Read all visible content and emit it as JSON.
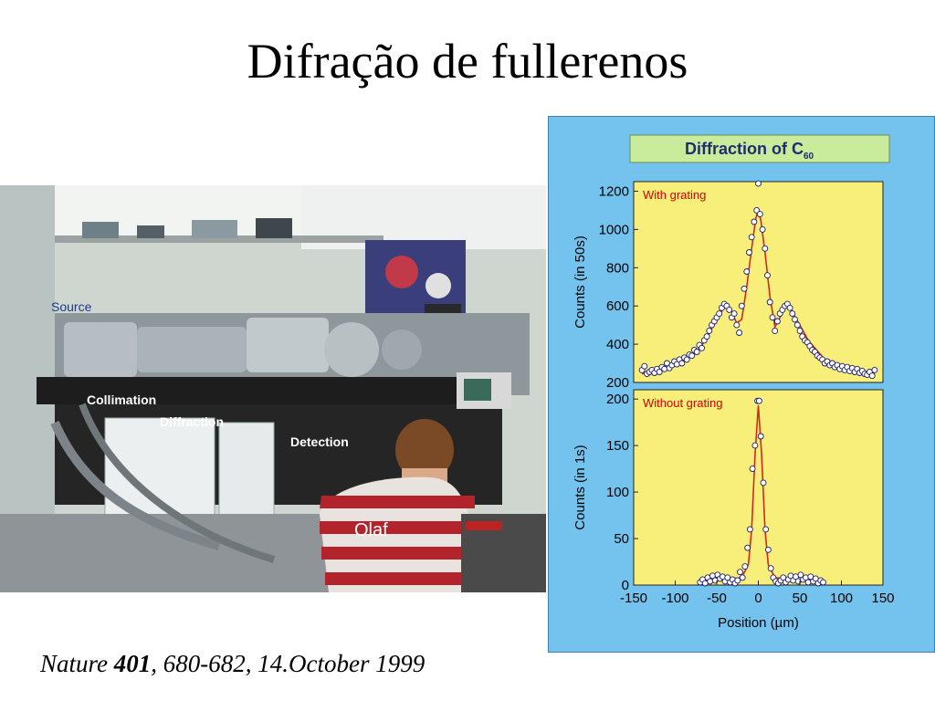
{
  "slide": {
    "title": "Difração de fullerenos",
    "citation": {
      "journal": "Nature ",
      "volume": "401",
      "rest": ", 680-682, 14.October 1999"
    }
  },
  "photo": {
    "labels": {
      "source": "Source",
      "collimation": "Collimation",
      "diffraction": "Diffraction",
      "detection": "Detection",
      "person": "Olaf"
    }
  },
  "colors": {
    "panel_bg": "#74c3ee",
    "plot_bg": "#f7ef7a",
    "header_bg": "#c8eb9c",
    "header_text": "#1f2d6e",
    "fit_line": "#d42a1c",
    "marker_edge": "#1a1a6e"
  },
  "chart_data": {
    "type": "scatter",
    "title": "Diffraction of C60",
    "title_main": "Diffraction of C",
    "title_sub": "60",
    "xlabel": "Position (µm)",
    "xlim": [
      -150,
      150
    ],
    "xticks": [
      -150,
      -100,
      -50,
      0,
      50,
      100,
      150
    ],
    "xtick_labels": [
      "-150",
      "-100",
      "-50",
      "0",
      "50",
      "100",
      "150"
    ],
    "panels": [
      {
        "label": "With grating",
        "ylabel": "Counts (in 50s)",
        "ylim": [
          200,
          1250
        ],
        "yticks": [
          200,
          400,
          600,
          800,
          1000,
          1200
        ],
        "ytick_labels": [
          "200",
          "400",
          "600",
          "800",
          "1000",
          "1200"
        ],
        "points": [
          [
            -140,
            265
          ],
          [
            -137,
            285
          ],
          [
            -134,
            245
          ],
          [
            -131,
            255
          ],
          [
            -128,
            265
          ],
          [
            -125,
            250
          ],
          [
            -122,
            270
          ],
          [
            -119,
            255
          ],
          [
            -116,
            280
          ],
          [
            -113,
            270
          ],
          [
            -110,
            300
          ],
          [
            -107,
            275
          ],
          [
            -104,
            290
          ],
          [
            -101,
            310
          ],
          [
            -98,
            295
          ],
          [
            -95,
            320
          ],
          [
            -92,
            300
          ],
          [
            -89,
            330
          ],
          [
            -86,
            320
          ],
          [
            -83,
            345
          ],
          [
            -80,
            340
          ],
          [
            -77,
            370
          ],
          [
            -74,
            360
          ],
          [
            -71,
            395
          ],
          [
            -68,
            380
          ],
          [
            -65,
            420
          ],
          [
            -62,
            440
          ],
          [
            -59,
            470
          ],
          [
            -56,
            500
          ],
          [
            -53,
            520
          ],
          [
            -50,
            540
          ],
          [
            -47,
            560
          ],
          [
            -44,
            590
          ],
          [
            -41,
            610
          ],
          [
            -38,
            600
          ],
          [
            -35,
            580
          ],
          [
            -32,
            540
          ],
          [
            -29,
            560
          ],
          [
            -26,
            500
          ],
          [
            -23,
            460
          ],
          [
            -20,
            600
          ],
          [
            -17,
            690
          ],
          [
            -14,
            780
          ],
          [
            -11,
            880
          ],
          [
            -8,
            960
          ],
          [
            -5,
            1040
          ],
          [
            -2,
            1100
          ],
          [
            0,
            1240
          ],
          [
            2,
            1080
          ],
          [
            5,
            1000
          ],
          [
            8,
            900
          ],
          [
            11,
            760
          ],
          [
            14,
            620
          ],
          [
            17,
            540
          ],
          [
            20,
            470
          ],
          [
            23,
            520
          ],
          [
            26,
            560
          ],
          [
            29,
            580
          ],
          [
            32,
            600
          ],
          [
            35,
            610
          ],
          [
            38,
            590
          ],
          [
            41,
            560
          ],
          [
            44,
            530
          ],
          [
            47,
            500
          ],
          [
            50,
            470
          ],
          [
            53,
            440
          ],
          [
            56,
            420
          ],
          [
            59,
            410
          ],
          [
            62,
            390
          ],
          [
            65,
            370
          ],
          [
            68,
            360
          ],
          [
            71,
            340
          ],
          [
            74,
            330
          ],
          [
            77,
            320
          ],
          [
            80,
            300
          ],
          [
            83,
            310
          ],
          [
            86,
            290
          ],
          [
            89,
            300
          ],
          [
            92,
            280
          ],
          [
            95,
            290
          ],
          [
            98,
            270
          ],
          [
            101,
            285
          ],
          [
            104,
            265
          ],
          [
            107,
            280
          ],
          [
            110,
            260
          ],
          [
            113,
            275
          ],
          [
            116,
            255
          ],
          [
            119,
            270
          ],
          [
            122,
            250
          ],
          [
            125,
            260
          ],
          [
            128,
            245
          ],
          [
            131,
            240
          ],
          [
            134,
            255
          ],
          [
            137,
            235
          ],
          [
            140,
            265
          ]
        ],
        "fit": [
          [
            -140,
            245
          ],
          [
            -120,
            265
          ],
          [
            -100,
            295
          ],
          [
            -80,
            345
          ],
          [
            -70,
            380
          ],
          [
            -60,
            450
          ],
          [
            -50,
            530
          ],
          [
            -40,
            600
          ],
          [
            -33,
            580
          ],
          [
            -26,
            510
          ],
          [
            -20,
            530
          ],
          [
            -14,
            700
          ],
          [
            -8,
            900
          ],
          [
            -3,
            1060
          ],
          [
            0,
            1100
          ],
          [
            3,
            1050
          ],
          [
            8,
            880
          ],
          [
            14,
            650
          ],
          [
            20,
            490
          ],
          [
            26,
            540
          ],
          [
            33,
            600
          ],
          [
            40,
            575
          ],
          [
            50,
            500
          ],
          [
            60,
            420
          ],
          [
            70,
            370
          ],
          [
            80,
            320
          ],
          [
            100,
            285
          ],
          [
            120,
            260
          ],
          [
            140,
            245
          ]
        ]
      },
      {
        "label": "Without  grating",
        "ylabel": "Counts (in 1s)",
        "ylim": [
          0,
          210
        ],
        "yticks": [
          0,
          50,
          100,
          150,
          200
        ],
        "ytick_labels": [
          "0",
          "50",
          "100",
          "150",
          "200"
        ],
        "points": [
          [
            -70,
            3
          ],
          [
            -67,
            6
          ],
          [
            -64,
            2
          ],
          [
            -61,
            8
          ],
          [
            -58,
            4
          ],
          [
            -55,
            10
          ],
          [
            -52,
            5
          ],
          [
            -49,
            11
          ],
          [
            -46,
            7
          ],
          [
            -43,
            9
          ],
          [
            -40,
            4
          ],
          [
            -37,
            8
          ],
          [
            -34,
            3
          ],
          [
            -31,
            6
          ],
          [
            -28,
            2
          ],
          [
            -25,
            5
          ],
          [
            -22,
            14
          ],
          [
            -19,
            8
          ],
          [
            -16,
            20
          ],
          [
            -13,
            40
          ],
          [
            -10,
            60
          ],
          [
            -7,
            125
          ],
          [
            -4,
            150
          ],
          [
            -1,
            198
          ],
          [
            1,
            198
          ],
          [
            3,
            160
          ],
          [
            6,
            110
          ],
          [
            9,
            60
          ],
          [
            12,
            38
          ],
          [
            15,
            18
          ],
          [
            18,
            8
          ],
          [
            21,
            4
          ],
          [
            24,
            2
          ],
          [
            27,
            5
          ],
          [
            30,
            8
          ],
          [
            33,
            3
          ],
          [
            36,
            6
          ],
          [
            39,
            10
          ],
          [
            42,
            5
          ],
          [
            45,
            9
          ],
          [
            48,
            4
          ],
          [
            51,
            11
          ],
          [
            54,
            6
          ],
          [
            57,
            8
          ],
          [
            60,
            3
          ],
          [
            63,
            9
          ],
          [
            66,
            4
          ],
          [
            69,
            7
          ],
          [
            72,
            2
          ],
          [
            75,
            5
          ],
          [
            78,
            3
          ]
        ],
        "fit": [
          [
            -70,
            4
          ],
          [
            -40,
            6
          ],
          [
            -20,
            8
          ],
          [
            -12,
            22
          ],
          [
            -8,
            60
          ],
          [
            -4,
            140
          ],
          [
            0,
            193
          ],
          [
            4,
            140
          ],
          [
            8,
            60
          ],
          [
            12,
            22
          ],
          [
            20,
            8
          ],
          [
            40,
            6
          ],
          [
            78,
            4
          ]
        ]
      }
    ]
  }
}
